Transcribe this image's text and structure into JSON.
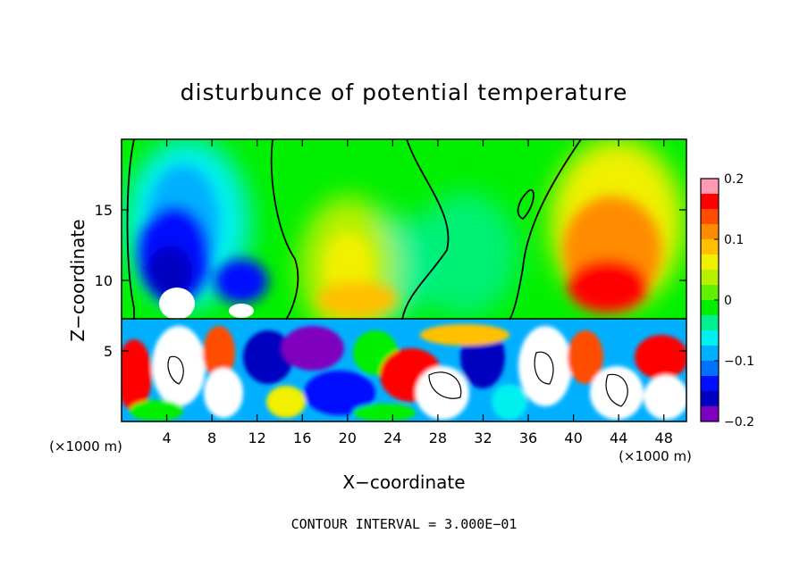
{
  "chart_data": {
    "type": "heatmap",
    "title": "disturbunce of potential temperature",
    "xlabel": "X−coordinate",
    "ylabel": "Z−coordinate",
    "x_unit": "(×1000 m)",
    "z_unit": "(×1000 m)",
    "xlim": [
      0,
      50
    ],
    "zlim": [
      0,
      20
    ],
    "x_ticks": [
      4,
      8,
      12,
      16,
      20,
      24,
      28,
      32,
      36,
      40,
      44,
      48
    ],
    "z_ticks": [
      5,
      10,
      15
    ],
    "x_tick_labels": [
      "4",
      "8",
      "12",
      "16",
      "20",
      "24",
      "28",
      "32",
      "36",
      "40",
      "44",
      "48"
    ],
    "z_tick_labels": [
      "5",
      "10",
      "15"
    ],
    "colorbar": {
      "range": [
        -0.2,
        0.2
      ],
      "tick_values": [
        0.2,
        0.1,
        0,
        -0.1,
        -0.2
      ],
      "tick_labels": [
        "0.2",
        "0.1",
        "0",
        "−0.1",
        "−0.2"
      ],
      "colors": [
        "#ff9ab0",
        "#ff0000",
        "#ff4d00",
        "#ff8c00",
        "#ffc000",
        "#f0f000",
        "#b8f000",
        "#60f000",
        "#00f000",
        "#00f090",
        "#00f0f0",
        "#00b0ff",
        "#0070ff",
        "#0010ff",
        "#0000c0",
        "#8000c0"
      ]
    },
    "annotation": "CONTOUR INTERVAL = 3.000E−01",
    "features": [
      {
        "name": "negative anomaly upper left",
        "x": [
          1,
          13
        ],
        "z": [
          7.5,
          19
        ],
        "min": -0.18
      },
      {
        "name": "positive anomaly center",
        "x": [
          15,
          27
        ],
        "z": [
          7.5,
          16
        ],
        "max": 0.05
      },
      {
        "name": "positive anomaly right",
        "x": [
          36,
          50
        ],
        "z": [
          7.5,
          19
        ],
        "max": 0.15
      },
      {
        "name": "turbulent lower layer",
        "x": [
          0,
          50
        ],
        "z": [
          0,
          7.3
        ]
      }
    ]
  }
}
